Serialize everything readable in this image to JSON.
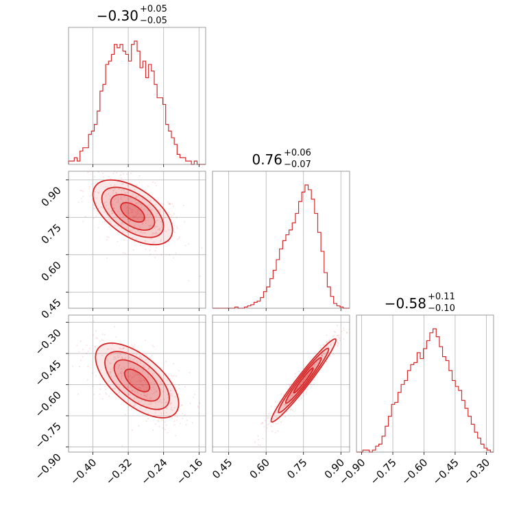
{
  "chart_data": {
    "type": "corner",
    "color": "#d62728",
    "parameters": [
      {
        "title_main": "−0.30",
        "title_plus": "+0.05",
        "title_minus": "−0.05",
        "range": [
          -0.455,
          -0.145
        ],
        "ticks": [
          -0.4,
          -0.32,
          -0.24,
          -0.16
        ],
        "tick_labels": [
          "−0.40",
          "−0.32",
          "−0.24",
          "−0.16"
        ],
        "hist_counts": [
          1,
          1,
          2,
          1,
          4,
          5,
          5,
          9,
          10,
          12,
          16,
          22,
          24,
          30,
          31,
          33,
          36,
          35,
          36,
          34,
          33,
          31,
          36,
          37,
          34,
          29,
          31,
          26,
          30,
          28,
          24,
          20,
          20,
          18,
          12,
          10,
          8,
          6,
          3,
          2,
          2,
          1,
          1,
          0,
          1,
          0,
          0,
          0
        ]
      },
      {
        "title_main": "0.76",
        "title_plus": "+0.06",
        "title_minus": "−0.07",
        "range": [
          0.385,
          0.935
        ],
        "ticks": [
          0.45,
          0.6,
          0.75,
          0.9
        ],
        "tick_labels": [
          "0.45",
          "0.60",
          "0.75",
          "0.90"
        ],
        "hist_counts": [
          0,
          0,
          0,
          0,
          0,
          0,
          0,
          1,
          0,
          0,
          1,
          2,
          3,
          5,
          6,
          9,
          14,
          18,
          25,
          32,
          41,
          50,
          57,
          62,
          66,
          72,
          80,
          90,
          98,
          104,
          100,
          92,
          80,
          64,
          48,
          30,
          18,
          10,
          4,
          2,
          1,
          0,
          0
        ]
      },
      {
        "title_main": "−0.58",
        "title_plus": "+0.11",
        "title_minus": "−0.10",
        "range": [
          -0.925,
          -0.265
        ],
        "ticks": [
          -0.9,
          -0.75,
          -0.6,
          -0.45,
          -0.3
        ],
        "tick_labels": [
          "−0.90",
          "−0.75",
          "−0.60",
          "−0.45",
          "−0.30"
        ],
        "hist_counts": [
          0,
          0,
          1,
          1,
          0,
          1,
          3,
          4,
          8,
          13,
          18,
          24,
          25,
          30,
          34,
          36,
          41,
          44,
          45,
          50,
          47,
          52,
          56,
          60,
          62,
          58,
          53,
          48,
          46,
          41,
          36,
          33,
          31,
          26,
          22,
          18,
          14,
          10,
          7,
          4,
          2,
          1,
          0
        ]
      }
    ],
    "scatter_pairs": [
      {
        "x_param": 0,
        "y_param": 1,
        "center": [
          -0.31,
          0.77
        ],
        "spread": [
          0.045,
          0.065
        ],
        "correlation": -0.55
      },
      {
        "x_param": 0,
        "y_param": 2,
        "center": [
          -0.3,
          -0.58
        ],
        "spread": [
          0.047,
          0.09
        ],
        "correlation": -0.62
      },
      {
        "x_param": 1,
        "y_param": 2,
        "center": [
          0.75,
          -0.58
        ],
        "spread": [
          0.065,
          0.1
        ],
        "correlation": 0.97
      }
    ],
    "grid": true
  }
}
